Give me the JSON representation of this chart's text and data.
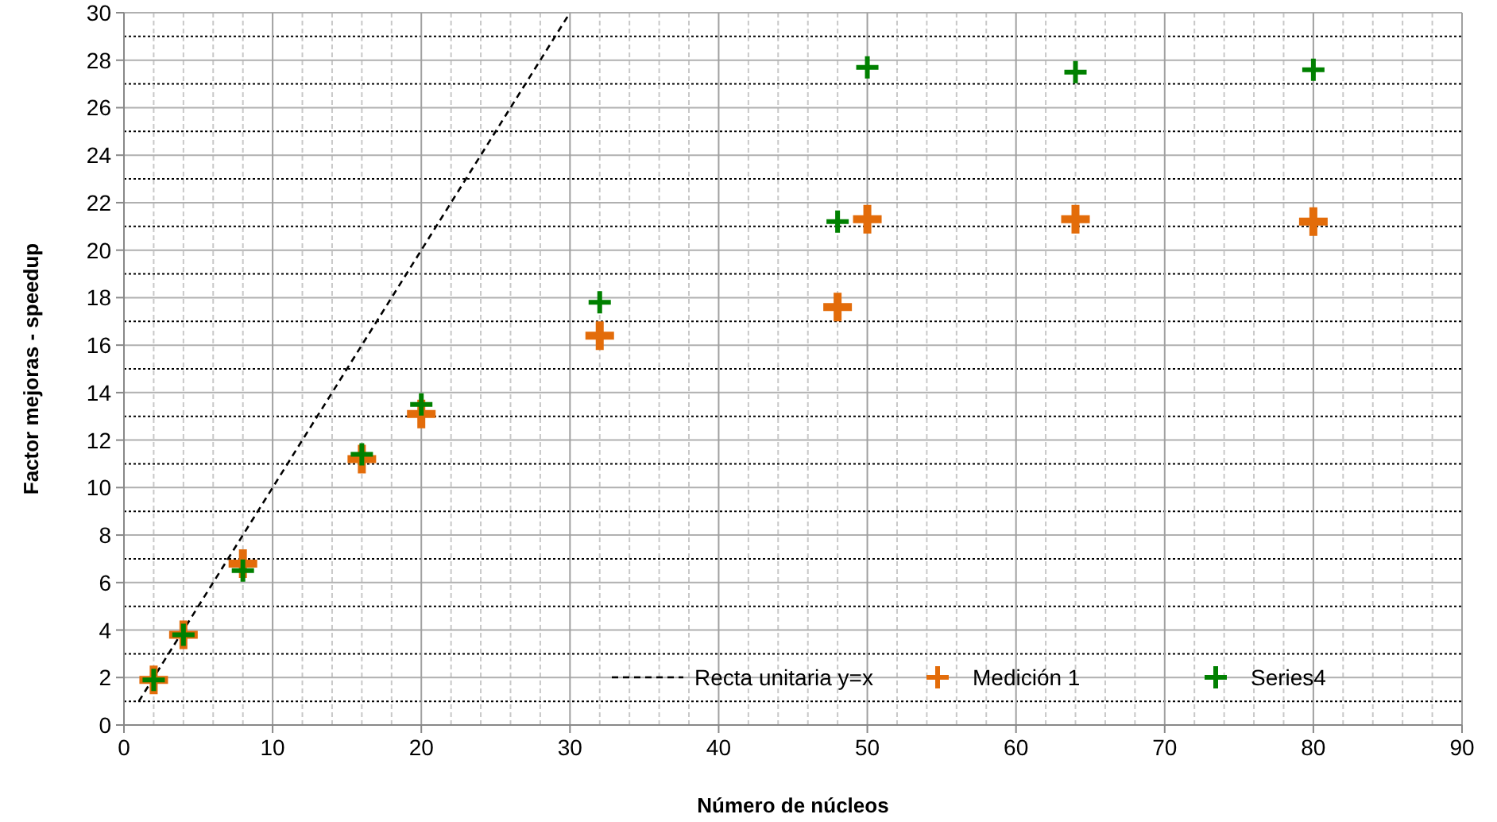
{
  "chart_data": {
    "type": "scatter",
    "xlabel": "Número de núcleos",
    "ylabel": "Factor mejoras - speedup",
    "xlim": [
      0,
      90
    ],
    "xticks": [
      0,
      10,
      20,
      30,
      40,
      50,
      60,
      70,
      80,
      90
    ],
    "ylim": [
      0,
      30
    ],
    "yticks": [
      0,
      2,
      4,
      6,
      8,
      10,
      12,
      14,
      16,
      18,
      20,
      22,
      24,
      26,
      28,
      30
    ],
    "grid": true,
    "legend": "bottom right",
    "marker": "cross",
    "series": [
      {
        "name": "Recta unitaria y=x",
        "type": "line",
        "color": "#000000",
        "line_style": "dashed",
        "marker": "none",
        "x": [
          1,
          30
        ],
        "values": [
          1,
          30
        ]
      },
      {
        "name": "Medición 1",
        "color": "#e36c0a",
        "x": [
          2,
          4,
          8,
          16,
          20,
          32,
          48,
          50,
          64,
          80
        ],
        "values": [
          1.9,
          3.8,
          6.8,
          11.2,
          13.1,
          16.4,
          17.6,
          21.3,
          21.3,
          21.2
        ]
      },
      {
        "name": "Series4",
        "color": "#008000",
        "x": [
          2,
          4,
          8,
          16,
          20,
          32,
          48,
          50,
          64,
          80
        ],
        "values": [
          1.9,
          3.8,
          6.5,
          11.4,
          13.5,
          17.8,
          21.2,
          27.7,
          27.5,
          27.6
        ]
      }
    ]
  }
}
